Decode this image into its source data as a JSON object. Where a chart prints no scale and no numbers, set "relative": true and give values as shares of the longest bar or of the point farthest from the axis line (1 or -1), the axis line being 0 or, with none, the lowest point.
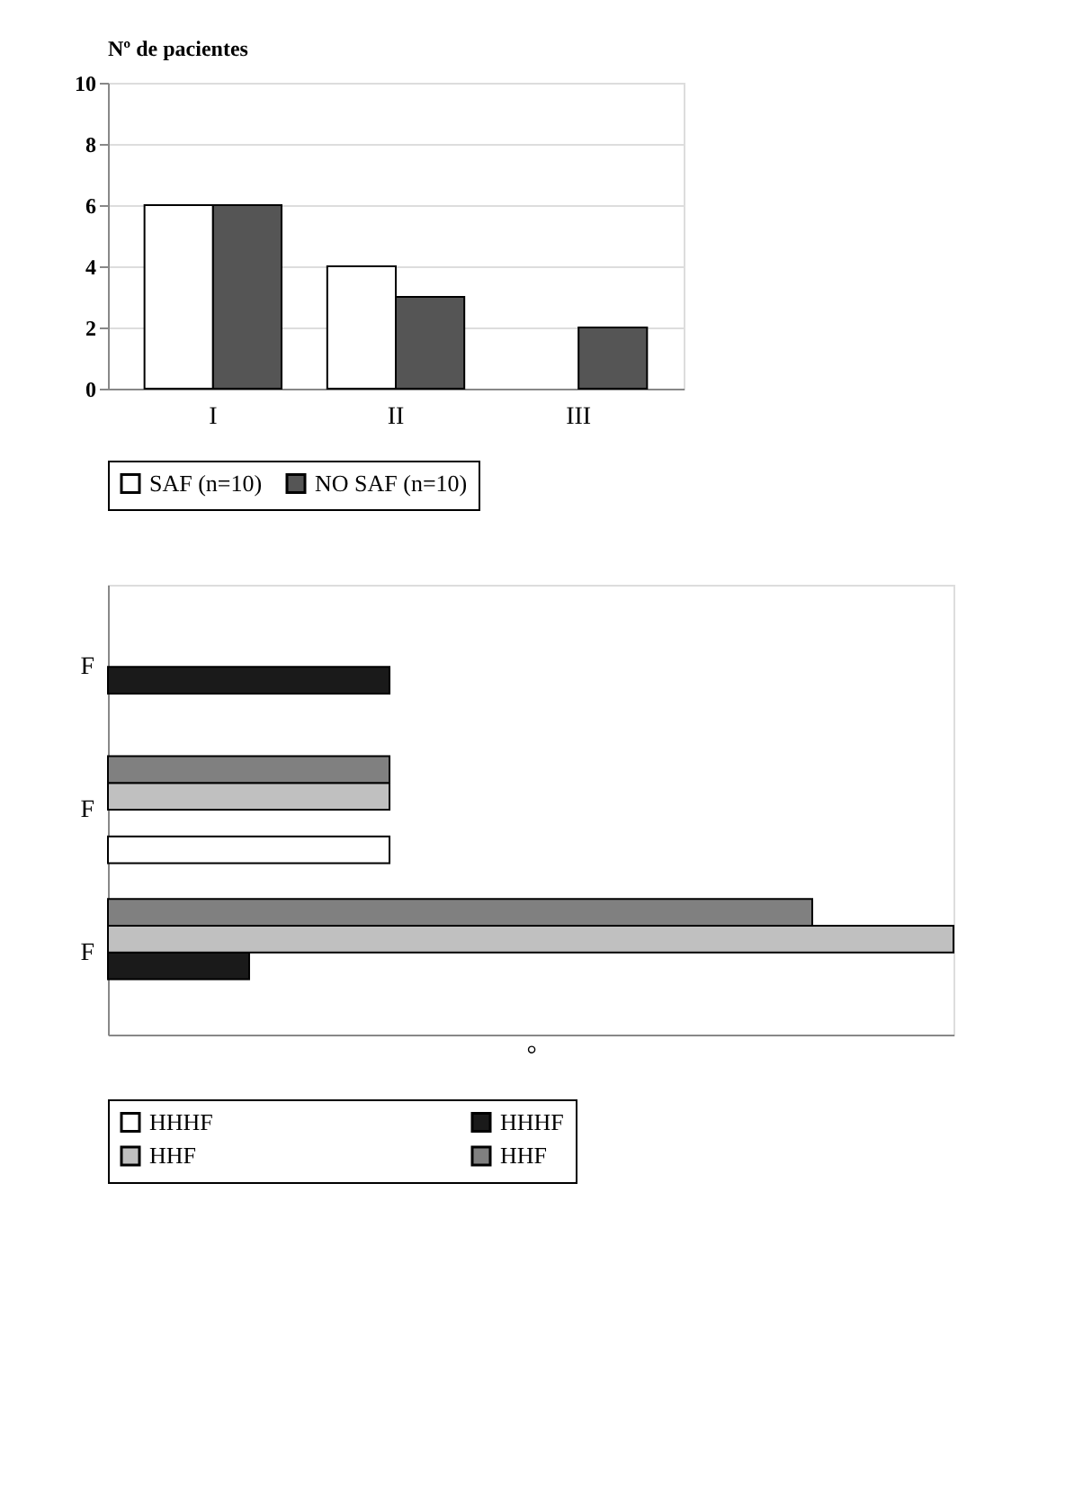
{
  "chart_data": [
    {
      "type": "bar",
      "ylabel": "Nº de pacientes",
      "categories": [
        "I",
        "II",
        "III"
      ],
      "series": [
        {
          "name": "SAF (n=10)",
          "color": "#ffffff",
          "values": [
            6,
            4,
            0
          ]
        },
        {
          "name": "NO SAF (n=10)",
          "color": "#555555",
          "values": [
            6,
            3,
            2
          ]
        }
      ],
      "ylim": [
        0,
        10
      ],
      "yticks": [
        0,
        2,
        4,
        6,
        8,
        10
      ],
      "grid": "y",
      "legend": "bottom"
    },
    {
      "type": "bar",
      "orientation": "horizontal",
      "relative": true,
      "xlabel": "°",
      "categories": [
        "F",
        "F",
        "F"
      ],
      "series": [
        {
          "name": "HHHF",
          "color": "#ffffff",
          "values": [
            null,
            0.333,
            null
          ]
        },
        {
          "name": "HHHF",
          "color": "#1a1a1a",
          "values": [
            0.333,
            null,
            0.167
          ]
        },
        {
          "name": "HHF",
          "color": "#c0c0c0",
          "values": [
            null,
            0.333,
            1
          ]
        },
        {
          "name": "HHF",
          "color": "#808080",
          "values": [
            null,
            0.333,
            0.833
          ]
        }
      ],
      "legend": "bottom"
    }
  ]
}
